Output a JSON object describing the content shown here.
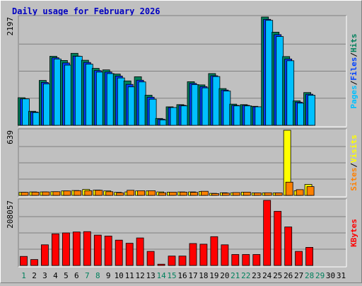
{
  "title": "Daily usage for February 2026",
  "colors": {
    "hits": "#00805c",
    "files": "#0040ff",
    "pages": "#00c0ff",
    "visits": "#ffff00",
    "sites": "#ff8000",
    "kbytes": "#ff0000",
    "title": "#0000c0",
    "weekday": "#000000",
    "weekend": "#00805c",
    "panel_bg": "#c0c0c0",
    "grid": "#808080"
  },
  "side_labels": {
    "top": [
      {
        "text": "Pages",
        "color": "#00c0ff"
      },
      {
        "text": "/",
        "color": "#000000"
      },
      {
        "text": "Files",
        "color": "#0040ff"
      },
      {
        "text": "/",
        "color": "#000000"
      },
      {
        "text": "Hits",
        "color": "#00805c"
      }
    ],
    "middle": [
      {
        "text": "Sites",
        "color": "#ff8000"
      },
      {
        "text": "/",
        "color": "#000000"
      },
      {
        "text": "Visits",
        "color": "#ffff00"
      }
    ],
    "bottom": [
      {
        "text": "KBytes",
        "color": "#ff0000"
      }
    ]
  },
  "chart_data": [
    {
      "type": "bar",
      "panel": "hits-files-pages",
      "max_label": "2197",
      "ylim": [
        0,
        2197
      ],
      "categories": [
        "1",
        "2",
        "3",
        "4",
        "5",
        "6",
        "7",
        "8",
        "9",
        "10",
        "11",
        "12",
        "13",
        "14",
        "15",
        "16",
        "17",
        "18",
        "19",
        "20",
        "21",
        "22",
        "23",
        "24",
        "25",
        "26",
        "27",
        "28",
        "29",
        "30",
        "31"
      ],
      "series": [
        {
          "name": "Hits",
          "values": [
            560,
            285,
            910,
            1400,
            1315,
            1460,
            1320,
            1155,
            1125,
            1040,
            900,
            985,
            610,
            140,
            375,
            420,
            885,
            820,
            1050,
            745,
            430,
            420,
            385,
            2197,
            1890,
            1395,
            495,
            665,
            0,
            0,
            0
          ]
        },
        {
          "name": "Files",
          "values": [
            535,
            270,
            870,
            1370,
            1265,
            1405,
            1275,
            1110,
            1080,
            1000,
            830,
            915,
            570,
            125,
            360,
            405,
            850,
            785,
            1005,
            715,
            405,
            405,
            375,
            2150,
            1840,
            1345,
            470,
            630,
            0,
            0,
            0
          ]
        },
        {
          "name": "Pages",
          "values": [
            535,
            260,
            840,
            1345,
            1220,
            1400,
            1240,
            1080,
            1050,
            960,
            780,
            880,
            530,
            110,
            360,
            395,
            825,
            760,
            990,
            695,
            395,
            395,
            375,
            2130,
            1800,
            1310,
            450,
            610,
            0,
            0,
            0
          ]
        }
      ]
    },
    {
      "type": "bar",
      "panel": "visits-sites",
      "max_label": "639",
      "ylim": [
        0,
        639
      ],
      "categories": [
        "1",
        "2",
        "3",
        "4",
        "5",
        "6",
        "7",
        "8",
        "9",
        "10",
        "11",
        "12",
        "13",
        "14",
        "15",
        "16",
        "17",
        "18",
        "19",
        "20",
        "21",
        "22",
        "23",
        "24",
        "25",
        "26",
        "27",
        "28",
        "29",
        "30",
        "31"
      ],
      "series": [
        {
          "name": "Visits",
          "values": [
            30,
            34,
            34,
            36,
            44,
            48,
            58,
            52,
            44,
            30,
            34,
            44,
            44,
            34,
            32,
            34,
            34,
            38,
            20,
            26,
            26,
            32,
            24,
            24,
            24,
            639,
            46,
            108,
            0,
            0,
            0
          ]
        },
        {
          "name": "Sites",
          "values": [
            30,
            32,
            34,
            36,
            44,
            46,
            46,
            50,
            36,
            26,
            50,
            46,
            46,
            26,
            32,
            32,
            30,
            40,
            18,
            22,
            28,
            32,
            24,
            26,
            24,
            130,
            56,
            86,
            0,
            0,
            0
          ]
        }
      ]
    },
    {
      "type": "bar",
      "panel": "kbytes",
      "max_label": "208057",
      "ylim": [
        0,
        208057
      ],
      "categories": [
        "1",
        "2",
        "3",
        "4",
        "5",
        "6",
        "7",
        "8",
        "9",
        "10",
        "11",
        "12",
        "13",
        "14",
        "15",
        "16",
        "17",
        "18",
        "19",
        "20",
        "21",
        "22",
        "23",
        "24",
        "25",
        "26",
        "27",
        "28",
        "29",
        "30",
        "31"
      ],
      "series": [
        {
          "name": "KBytes",
          "values": [
            29000,
            19000,
            66000,
            101000,
            104000,
            107000,
            108000,
            97000,
            94000,
            81000,
            71000,
            88000,
            45000,
            4000,
            30000,
            30000,
            70000,
            68000,
            92000,
            66000,
            35000,
            35000,
            35000,
            208057,
            173000,
            123000,
            45000,
            58000,
            0,
            0,
            0
          ]
        }
      ]
    }
  ],
  "x_labels": [
    {
      "day": "1",
      "weekend": true
    },
    {
      "day": "2",
      "weekend": false
    },
    {
      "day": "3",
      "weekend": false
    },
    {
      "day": "4",
      "weekend": false
    },
    {
      "day": "5",
      "weekend": false
    },
    {
      "day": "6",
      "weekend": false
    },
    {
      "day": "7",
      "weekend": true
    },
    {
      "day": "8",
      "weekend": true
    },
    {
      "day": "9",
      "weekend": false
    },
    {
      "day": "10",
      "weekend": false
    },
    {
      "day": "11",
      "weekend": false
    },
    {
      "day": "12",
      "weekend": false
    },
    {
      "day": "13",
      "weekend": false
    },
    {
      "day": "14",
      "weekend": true
    },
    {
      "day": "15",
      "weekend": true
    },
    {
      "day": "16",
      "weekend": false
    },
    {
      "day": "17",
      "weekend": false
    },
    {
      "day": "18",
      "weekend": false
    },
    {
      "day": "19",
      "weekend": false
    },
    {
      "day": "20",
      "weekend": false
    },
    {
      "day": "21",
      "weekend": true
    },
    {
      "day": "22",
      "weekend": true
    },
    {
      "day": "23",
      "weekend": false
    },
    {
      "day": "24",
      "weekend": false
    },
    {
      "day": "25",
      "weekend": false
    },
    {
      "day": "26",
      "weekend": false
    },
    {
      "day": "27",
      "weekend": false
    },
    {
      "day": "28",
      "weekend": true
    },
    {
      "day": "29",
      "weekend": true
    },
    {
      "day": "30",
      "weekend": false
    },
    {
      "day": "31",
      "weekend": false
    }
  ]
}
